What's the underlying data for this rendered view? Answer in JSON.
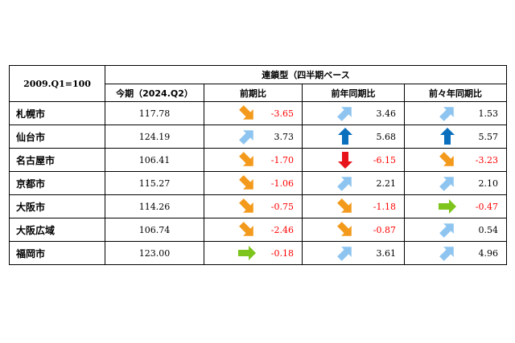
{
  "table": {
    "basis": "2009.Q1=100",
    "group_header": "連鎖型（四半期ベース",
    "columns": [
      "今期（2024.Q2）",
      "前期比",
      "前年同期比",
      "前々年同期比"
    ],
    "rows": [
      {
        "city": "札幌市",
        "index": "117.78",
        "qoq": {
          "value": "-3.65",
          "arrow": "down-right-orange",
          "neg": true
        },
        "yoy": {
          "value": "3.46",
          "arrow": "up-right-lightblue",
          "neg": false
        },
        "yoy2": {
          "value": "1.53",
          "arrow": "up-right-lightblue",
          "neg": false
        }
      },
      {
        "city": "仙台市",
        "index": "124.19",
        "qoq": {
          "value": "3.73",
          "arrow": "up-right-lightblue",
          "neg": false
        },
        "yoy": {
          "value": "5.68",
          "arrow": "up-blue",
          "neg": false
        },
        "yoy2": {
          "value": "5.57",
          "arrow": "up-blue",
          "neg": false
        }
      },
      {
        "city": "名古屋市",
        "index": "106.41",
        "qoq": {
          "value": "-1.70",
          "arrow": "down-right-orange",
          "neg": true
        },
        "yoy": {
          "value": "-6.15",
          "arrow": "down-red",
          "neg": true
        },
        "yoy2": {
          "value": "-3.23",
          "arrow": "down-right-orange",
          "neg": true
        }
      },
      {
        "city": "京都市",
        "index": "115.27",
        "qoq": {
          "value": "-1.06",
          "arrow": "down-right-orange",
          "neg": true
        },
        "yoy": {
          "value": "2.21",
          "arrow": "up-right-lightblue",
          "neg": false
        },
        "yoy2": {
          "value": "2.10",
          "arrow": "up-right-lightblue",
          "neg": false
        }
      },
      {
        "city": "大阪市",
        "index": "114.26",
        "qoq": {
          "value": "-0.75",
          "arrow": "down-right-orange",
          "neg": true
        },
        "yoy": {
          "value": "-1.18",
          "arrow": "down-right-orange",
          "neg": true
        },
        "yoy2": {
          "value": "-0.47",
          "arrow": "right-green",
          "neg": true
        }
      },
      {
        "city": "大阪広域",
        "index": "106.74",
        "qoq": {
          "value": "-2.46",
          "arrow": "down-right-orange",
          "neg": true
        },
        "yoy": {
          "value": "-0.87",
          "arrow": "down-right-orange",
          "neg": true
        },
        "yoy2": {
          "value": "0.54",
          "arrow": "up-right-lightblue",
          "neg": false
        }
      },
      {
        "city": "福岡市",
        "index": "123.00",
        "qoq": {
          "value": "-0.18",
          "arrow": "right-green",
          "neg": true
        },
        "yoy": {
          "value": "3.61",
          "arrow": "up-right-lightblue",
          "neg": false
        },
        "yoy2": {
          "value": "4.96",
          "arrow": "up-right-lightblue",
          "neg": false
        }
      }
    ]
  },
  "colors": {
    "down-right-orange": "#f39a1c",
    "up-right-lightblue": "#8ec5f0",
    "up-blue": "#0a6fbd",
    "down-red": "#e8141c",
    "right-green": "#7dc41c",
    "negative-text": "#ff0000"
  }
}
